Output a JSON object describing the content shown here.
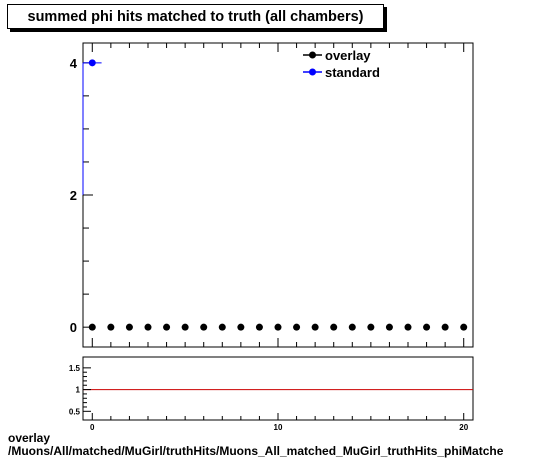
{
  "title": "summed phi hits matched to truth (all chambers)",
  "footer": {
    "line1": "overlay",
    "line2": "/Muons/All/matched/MuGirl/truthHits/Muons_All_matched_MuGirl_truthHits_phiMatche"
  },
  "legend": [
    {
      "label": "overlay",
      "color": "#000000"
    },
    {
      "label": "standard",
      "color": "#0000ff"
    }
  ],
  "colors": {
    "overlay": "#000000",
    "standard": "#0000ff",
    "ratio_line": "#cc0000"
  },
  "chart_data": [
    {
      "type": "line",
      "xlim": [
        -0.5,
        20.5
      ],
      "ylim": [
        -0.3,
        4.3
      ],
      "yticks": [
        0,
        2,
        4
      ],
      "x": [
        0,
        1,
        2,
        3,
        4,
        5,
        6,
        7,
        8,
        9,
        10,
        11,
        12,
        13,
        14,
        15,
        16,
        17,
        18,
        19,
        20
      ],
      "series": [
        {
          "name": "overlay",
          "color": "#000000",
          "values": [
            0,
            0,
            0,
            0,
            0,
            0,
            0,
            0,
            0,
            0,
            0,
            0,
            0,
            0,
            0,
            0,
            0,
            0,
            0,
            0,
            0
          ]
        },
        {
          "name": "standard",
          "color": "#0000ff",
          "values": [
            4,
            null,
            null,
            null,
            null,
            null,
            null,
            null,
            null,
            null,
            null,
            null,
            null,
            null,
            null,
            null,
            null,
            null,
            null,
            null,
            null
          ]
        }
      ],
      "standard_step": {
        "from_y": 2,
        "to_y": 4,
        "at_x": 0
      }
    },
    {
      "type": "line",
      "xlim": [
        -0.5,
        20.5
      ],
      "ylim": [
        0.3,
        1.75
      ],
      "yticks": [
        "0.5",
        "1",
        "1.5"
      ],
      "xticks": [
        "0",
        "10",
        "20"
      ],
      "reference_line": 1
    }
  ]
}
